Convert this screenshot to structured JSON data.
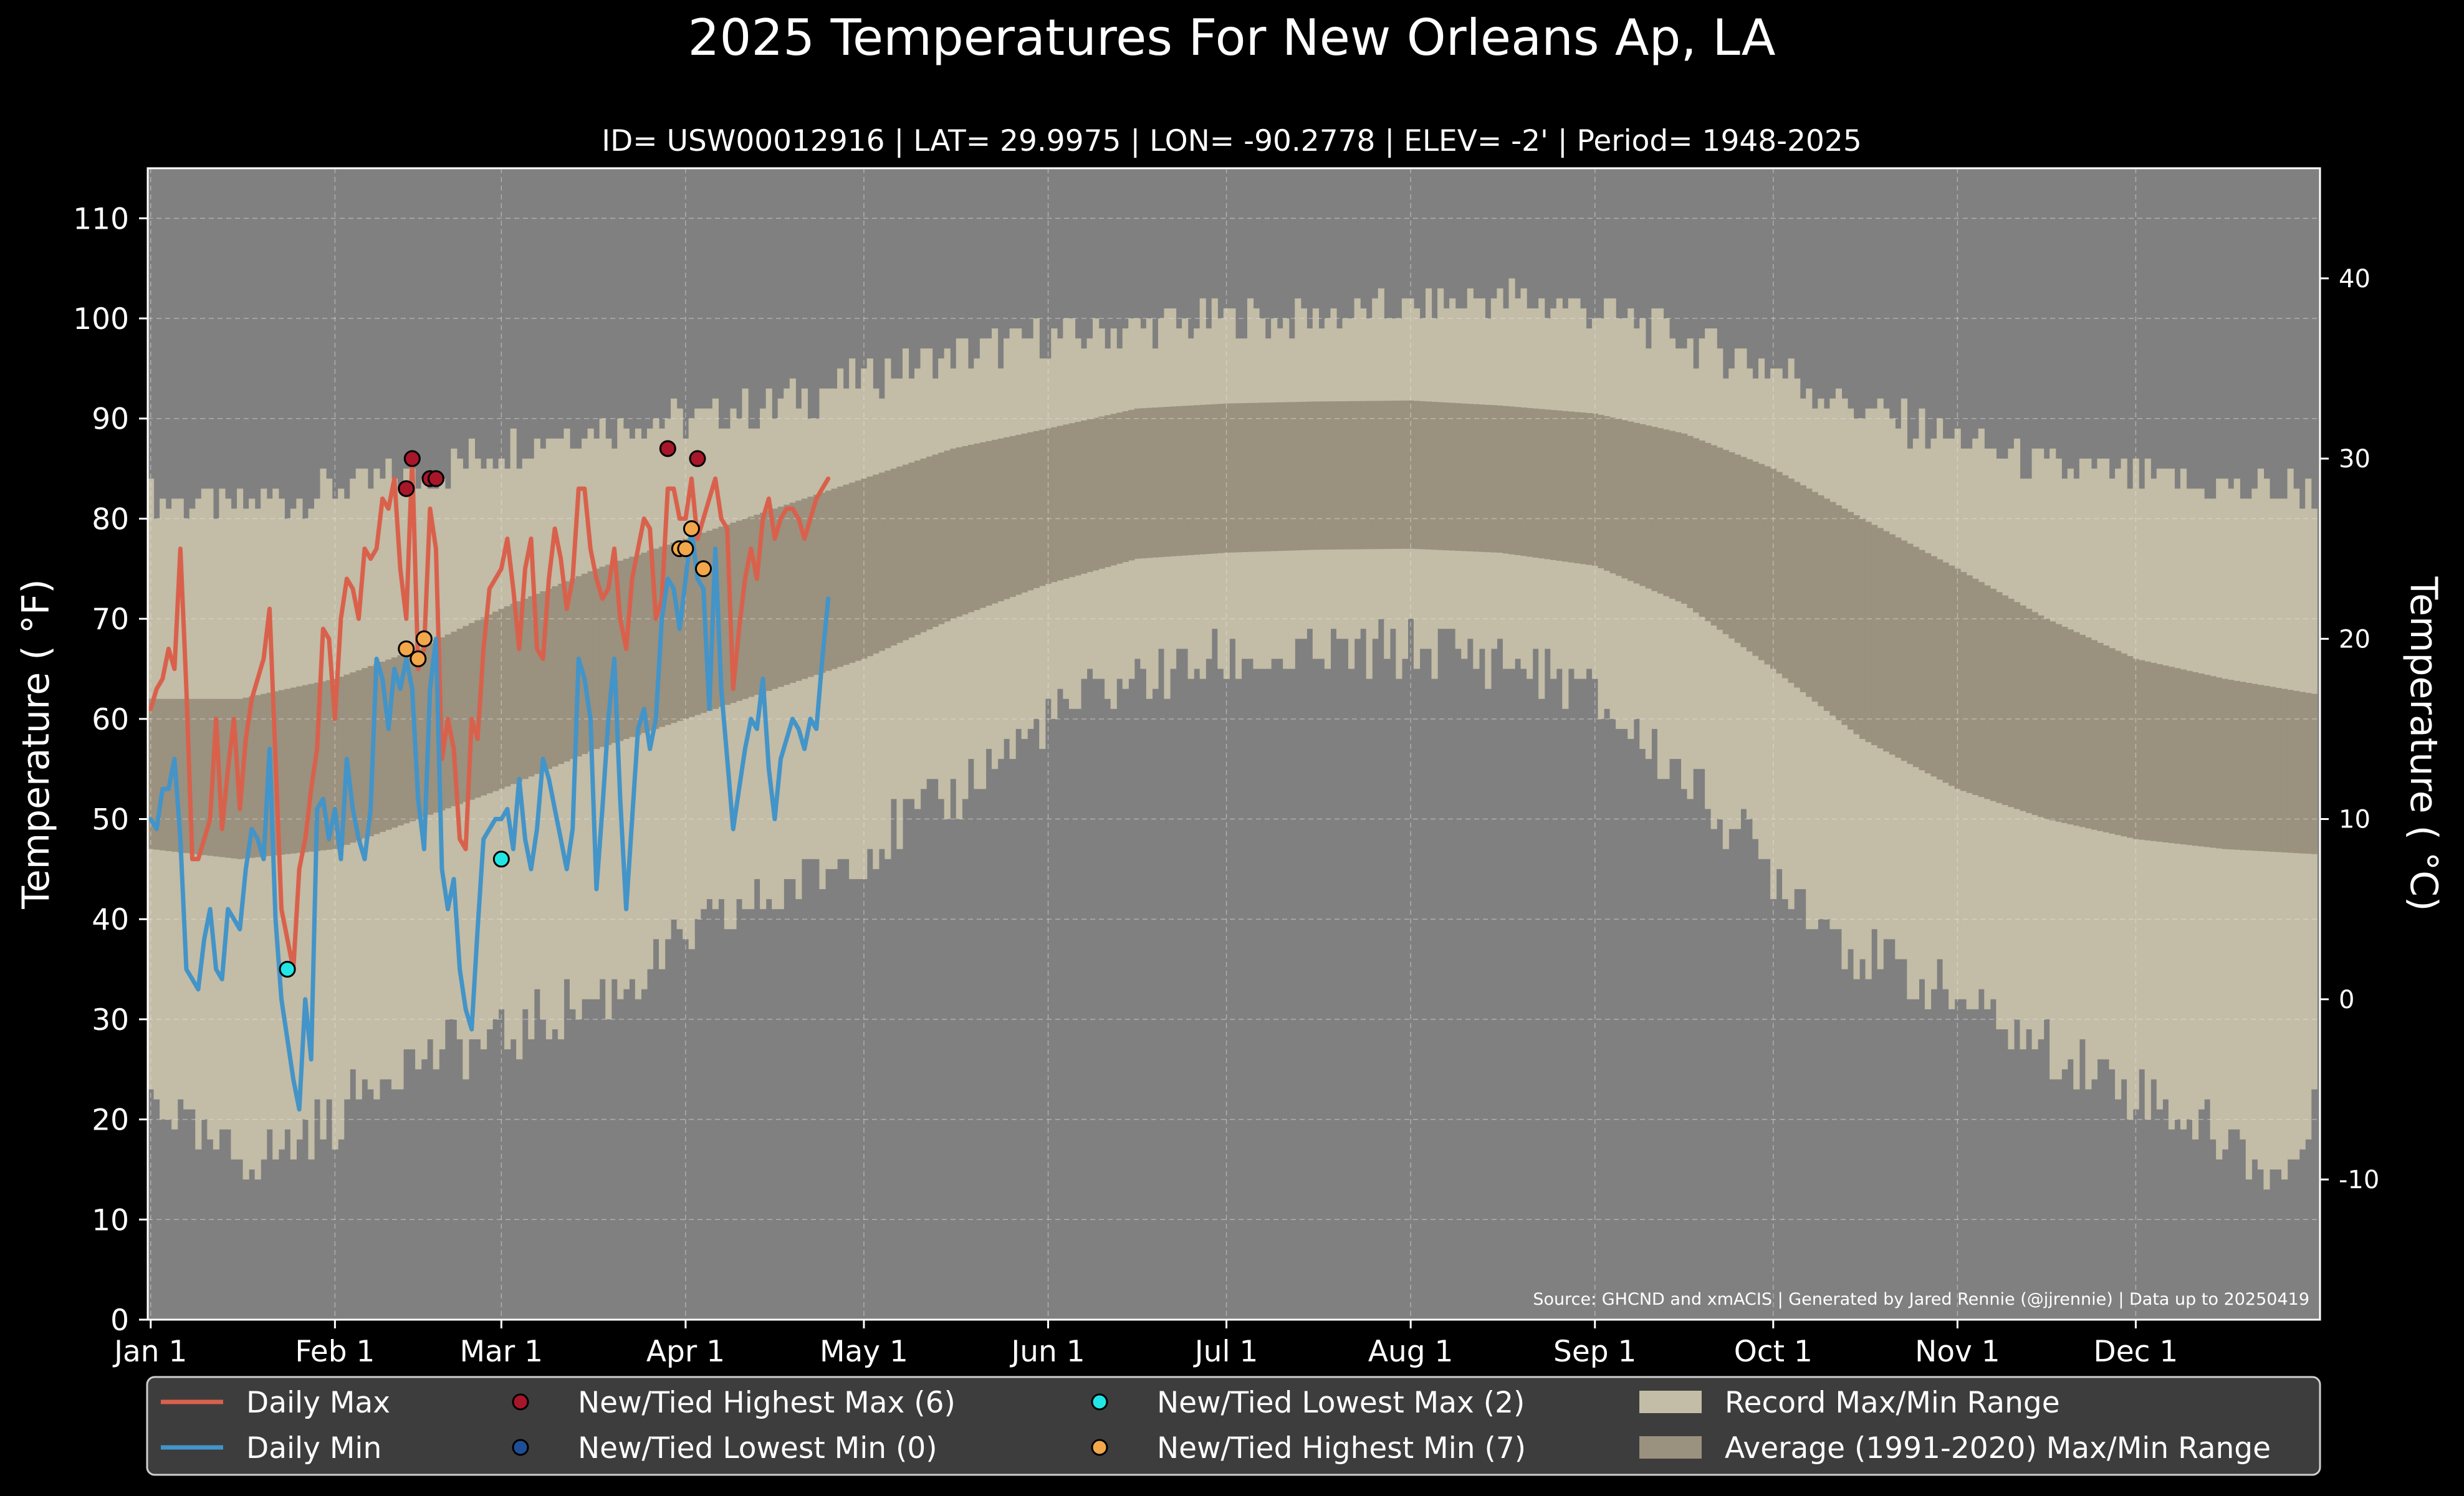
{
  "chart_data": {
    "type": "line",
    "title": "2025 Temperatures For New Orleans Ap, LA",
    "subtitle": "ID= USW00012916 | LAT= 29.9975 | LON= -90.2778 | ELEV= -2' | Period= 1948-2025",
    "ylabel": "Temperature ($^\\circ$F)",
    "ylabel_display": "Temperature ( °F)",
    "ylabel_right": "Temperature ( °C)",
    "ylim": [
      0,
      115
    ],
    "xlim_days": [
      1,
      365
    ],
    "y_ticks": [
      0,
      10,
      20,
      30,
      40,
      50,
      60,
      70,
      80,
      90,
      100,
      110
    ],
    "y_ticks_right": [
      -10,
      0,
      10,
      20,
      30,
      40
    ],
    "x_ticks": [
      {
        "label": "Jan 1",
        "day": 1
      },
      {
        "label": "Feb 1",
        "day": 32
      },
      {
        "label": "Mar 1",
        "day": 60
      },
      {
        "label": "Apr 1",
        "day": 91
      },
      {
        "label": "May 1",
        "day": 121
      },
      {
        "label": "Jun 1",
        "day": 152
      },
      {
        "label": "Jul 1",
        "day": 182
      },
      {
        "label": "Aug 1",
        "day": 213
      },
      {
        "label": "Sep 1",
        "day": 244
      },
      {
        "label": "Oct 1",
        "day": 274
      },
      {
        "label": "Nov 1",
        "day": 305
      },
      {
        "label": "Dec 1",
        "day": 335
      }
    ],
    "grid": true,
    "legend_position": "bottom",
    "source_note": "Source: GHCND and xmACIS | Generated by Jared Rennie (@jjrennie) | Data up to 20250419",
    "record_max_anchors": [
      [
        1,
        82
      ],
      [
        15,
        81
      ],
      [
        32,
        83
      ],
      [
        46,
        84
      ],
      [
        60,
        87
      ],
      [
        74,
        89
      ],
      [
        91,
        90
      ],
      [
        105,
        91
      ],
      [
        121,
        94
      ],
      [
        135,
        96
      ],
      [
        152,
        98
      ],
      [
        166,
        99
      ],
      [
        182,
        100
      ],
      [
        196,
        100
      ],
      [
        213,
        101
      ],
      [
        230,
        102
      ],
      [
        244,
        101
      ],
      [
        258,
        98
      ],
      [
        274,
        95
      ],
      [
        288,
        91
      ],
      [
        305,
        88
      ],
      [
        320,
        85
      ],
      [
        335,
        84
      ],
      [
        350,
        83
      ],
      [
        365,
        83
      ]
    ],
    "record_min_anchors": [
      [
        1,
        23
      ],
      [
        10,
        17
      ],
      [
        20,
        16
      ],
      [
        32,
        20
      ],
      [
        40,
        25
      ],
      [
        50,
        27
      ],
      [
        60,
        28
      ],
      [
        70,
        31
      ],
      [
        80,
        33
      ],
      [
        91,
        38
      ],
      [
        105,
        42
      ],
      [
        121,
        47
      ],
      [
        135,
        52
      ],
      [
        152,
        60
      ],
      [
        166,
        64
      ],
      [
        182,
        66
      ],
      [
        196,
        66
      ],
      [
        213,
        67
      ],
      [
        230,
        66
      ],
      [
        244,
        62
      ],
      [
        258,
        55
      ],
      [
        274,
        45
      ],
      [
        288,
        37
      ],
      [
        305,
        32
      ],
      [
        320,
        27
      ],
      [
        335,
        23
      ],
      [
        350,
        18
      ],
      [
        360,
        14
      ],
      [
        365,
        20
      ]
    ],
    "normal_max_anchors": [
      [
        1,
        62
      ],
      [
        16,
        62
      ],
      [
        32,
        64
      ],
      [
        46,
        67
      ],
      [
        60,
        71
      ],
      [
        76,
        75
      ],
      [
        91,
        78
      ],
      [
        106,
        81
      ],
      [
        121,
        84
      ],
      [
        136,
        87
      ],
      [
        152,
        89
      ],
      [
        167,
        91
      ],
      [
        182,
        91.5
      ],
      [
        197,
        91.7
      ],
      [
        213,
        91.8
      ],
      [
        228,
        91.3
      ],
      [
        244,
        90.5
      ],
      [
        259,
        88.5
      ],
      [
        274,
        85
      ],
      [
        289,
        80
      ],
      [
        305,
        75
      ],
      [
        320,
        70
      ],
      [
        335,
        66
      ],
      [
        350,
        64
      ],
      [
        365,
        62.5
      ]
    ],
    "normal_min_anchors": [
      [
        1,
        47
      ],
      [
        16,
        46
      ],
      [
        32,
        47
      ],
      [
        46,
        50
      ],
      [
        60,
        53
      ],
      [
        76,
        57
      ],
      [
        91,
        60
      ],
      [
        106,
        63
      ],
      [
        121,
        66
      ],
      [
        136,
        70
      ],
      [
        152,
        73.5
      ],
      [
        167,
        76
      ],
      [
        182,
        76.6
      ],
      [
        197,
        76.9
      ],
      [
        213,
        77
      ],
      [
        228,
        76.6
      ],
      [
        244,
        75.3
      ],
      [
        259,
        71.5
      ],
      [
        274,
        65
      ],
      [
        289,
        58
      ],
      [
        305,
        53
      ],
      [
        320,
        50
      ],
      [
        335,
        48
      ],
      [
        350,
        47
      ],
      [
        365,
        46.5
      ]
    ],
    "series": [
      {
        "name": "Daily Max",
        "color": "#d9614c",
        "values": [
          61,
          63,
          64,
          67,
          65,
          77,
          63,
          46,
          46,
          48,
          50,
          60,
          49,
          55,
          60,
          51,
          58,
          62,
          64,
          66,
          71,
          56,
          41,
          38,
          35,
          45,
          48,
          53,
          57,
          69,
          68,
          60,
          70,
          74,
          73,
          70,
          77,
          76,
          77,
          82,
          81,
          84,
          75,
          70,
          86,
          65,
          67,
          81,
          77,
          56,
          60,
          57,
          48,
          47,
          60,
          58,
          67,
          73,
          74,
          75,
          78,
          73,
          67,
          75,
          78,
          67,
          66,
          74,
          79,
          76,
          71,
          74,
          83,
          83,
          77,
          74,
          72,
          73,
          77,
          70,
          67,
          74,
          77,
          80,
          79,
          70,
          72,
          83,
          83,
          80,
          80,
          84,
          78,
          80,
          82,
          84,
          80,
          79,
          63,
          69,
          74,
          77,
          74,
          80,
          82,
          78,
          80,
          81,
          81,
          80,
          78,
          80,
          82,
          83,
          84
        ]
      },
      {
        "name": "Daily Min",
        "color": "#4394c8",
        "values": [
          50,
          49,
          53,
          53,
          56,
          48,
          35,
          34,
          33,
          38,
          41,
          35,
          34,
          41,
          40,
          39,
          45,
          49,
          48,
          46,
          57,
          40,
          32,
          28,
          24,
          21,
          32,
          26,
          51,
          52,
          48,
          51,
          46,
          56,
          51,
          48,
          46,
          51,
          66,
          64,
          59,
          65,
          63,
          66,
          63,
          52,
          47,
          63,
          68,
          45,
          41,
          44,
          35,
          31,
          29,
          39,
          48,
          49,
          50,
          50,
          51,
          47,
          54,
          48,
          45,
          49,
          56,
          54,
          51,
          48,
          45,
          49,
          66,
          64,
          60,
          43,
          51,
          60,
          66,
          52,
          41,
          50,
          59,
          61,
          57,
          60,
          70,
          74,
          73,
          69,
          74,
          79,
          74,
          73,
          61,
          77,
          63,
          56,
          49,
          53,
          57,
          60,
          59,
          64,
          55,
          50,
          56,
          58,
          60,
          59,
          57,
          60,
          59,
          66,
          72
        ]
      }
    ],
    "records": {
      "highest_max": [
        [
          44,
          83
        ],
        [
          45,
          86
        ],
        [
          48,
          84
        ],
        [
          49,
          84
        ],
        [
          88,
          87
        ],
        [
          93,
          86
        ]
      ],
      "lowest_min": [],
      "lowest_max": [
        [
          24,
          35
        ],
        [
          60,
          46
        ]
      ],
      "highest_min": [
        [
          44,
          67
        ],
        [
          46,
          66
        ],
        [
          47,
          68
        ],
        [
          90,
          77
        ],
        [
          91,
          77
        ],
        [
          92,
          79
        ],
        [
          94,
          75
        ]
      ]
    },
    "colors": {
      "background": "#000000",
      "plot_background": "#808080",
      "record_range": "#c3bca6",
      "normal_range": "#9a917f",
      "highest_max_marker": "#a8162a",
      "lowest_min_marker": "#1f4e97",
      "lowest_max_marker": "#22e6e6",
      "highest_min_marker": "#f2a74a"
    },
    "legend": [
      {
        "label": "Daily Max",
        "kind": "line",
        "color": "#d9614c"
      },
      {
        "label": "Daily Min",
        "kind": "line",
        "color": "#4394c8"
      },
      {
        "label": "New/Tied Highest Max (6)",
        "kind": "dot",
        "color": "#a8162a"
      },
      {
        "label": "New/Tied Lowest Min (0)",
        "kind": "dot",
        "color": "#1f4e97"
      },
      {
        "label": "New/Tied Lowest Max (2)",
        "kind": "dot",
        "color": "#22e6e6"
      },
      {
        "label": "New/Tied Highest Min (7)",
        "kind": "dot",
        "color": "#f2a74a"
      },
      {
        "label": "Record Max/Min Range",
        "kind": "patch",
        "color": "#c3bca6"
      },
      {
        "label": "Average (1991-2020) Max/Min Range",
        "kind": "patch",
        "color": "#9a917f"
      }
    ]
  }
}
